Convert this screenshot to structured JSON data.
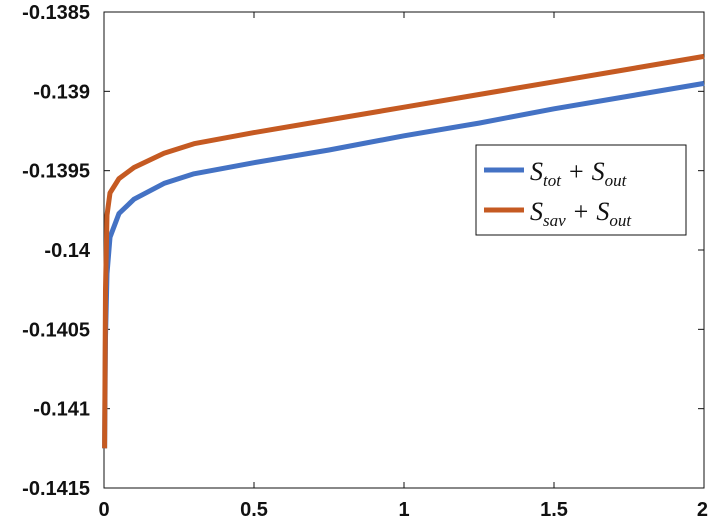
{
  "chart_data": {
    "type": "line",
    "title": "",
    "xlabel": "",
    "ylabel": "",
    "xlim": [
      0,
      2
    ],
    "ylim": [
      -0.1415,
      -0.1385
    ],
    "xticks": [
      0,
      0.5,
      1,
      1.5,
      2
    ],
    "xtick_labels": [
      "0",
      "0.5",
      "1",
      "1.5",
      "2"
    ],
    "yticks": [
      -0.1415,
      -0.141,
      -0.1405,
      -0.14,
      -0.1395,
      -0.139,
      -0.1385
    ],
    "ytick_labels": [
      "-0.1415",
      "-0.141",
      "-0.1405",
      "-0.14",
      "-0.1395",
      "-0.139",
      "-0.1385"
    ],
    "grid": false,
    "legend_position": "right",
    "series": [
      {
        "name": "S_tot + S_out",
        "color": "#4472c4",
        "x": [
          0.002,
          0.005,
          0.01,
          0.02,
          0.05,
          0.1,
          0.2,
          0.3,
          0.5,
          0.75,
          1.0,
          1.25,
          1.5,
          1.75,
          2.0
        ],
        "y": [
          -0.14125,
          -0.14055,
          -0.14015,
          -0.13992,
          -0.13977,
          -0.13968,
          -0.13958,
          -0.13952,
          -0.13945,
          -0.13937,
          -0.13928,
          -0.1392,
          -0.13911,
          -0.13903,
          -0.13895
        ]
      },
      {
        "name": "S_sav + S_out",
        "color": "#c55a22",
        "x": [
          0.002,
          0.005,
          0.01,
          0.02,
          0.05,
          0.1,
          0.2,
          0.3,
          0.5,
          0.75,
          1.0,
          1.25,
          1.5,
          1.75,
          2.0
        ],
        "y": [
          -0.14125,
          -0.14025,
          -0.13978,
          -0.13964,
          -0.13955,
          -0.13948,
          -0.13939,
          -0.13933,
          -0.13926,
          -0.13918,
          -0.1391,
          -0.13902,
          -0.13894,
          -0.13886,
          -0.13878
        ]
      }
    ],
    "legend": [
      {
        "base": "S",
        "sub": "tot",
        "plus": "+",
        "base2": "S",
        "sub2": "out",
        "color": "#4472c4"
      },
      {
        "base": "S",
        "sub": "sav",
        "plus": "+",
        "base2": "S",
        "sub2": "out",
        "color": "#c55a22"
      }
    ]
  }
}
